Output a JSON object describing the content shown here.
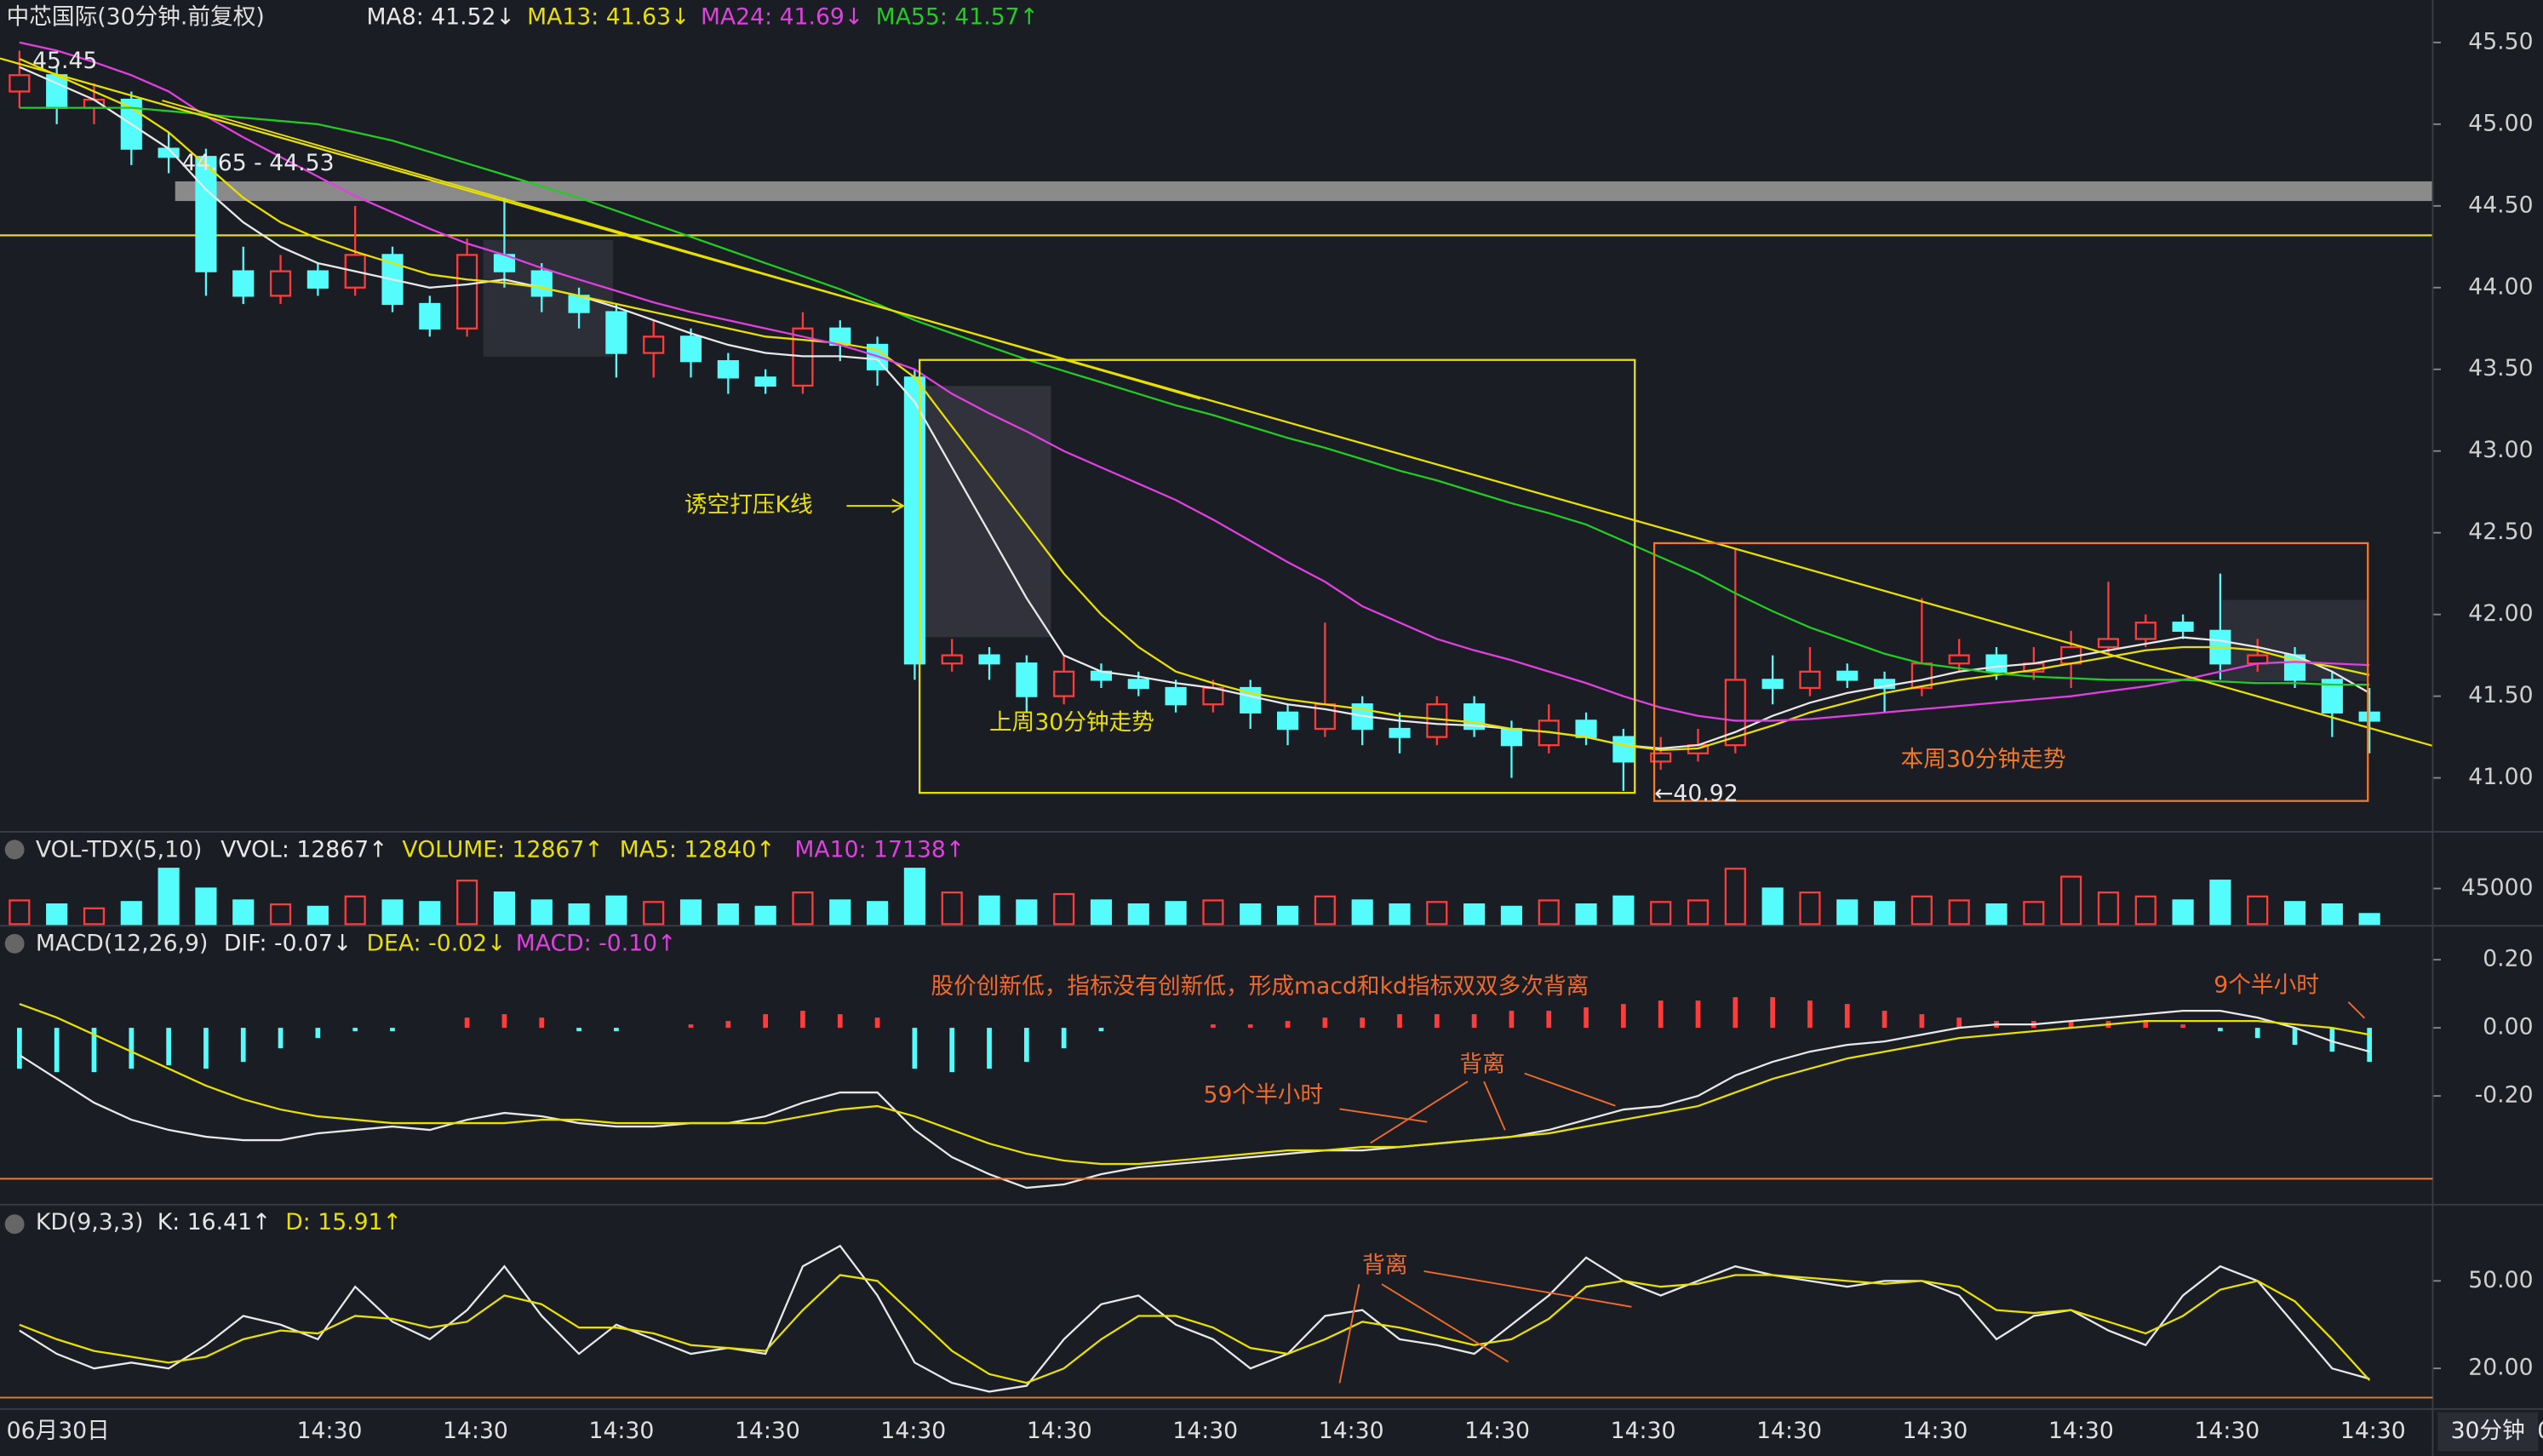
{
  "chart_data": [
    {
      "type": "candlestick",
      "title": "中芯国际(30分钟.前复权)",
      "title_color": "#e0e0e0",
      "open": [
        45.2,
        45.3,
        45.1,
        45.15,
        44.85,
        44.8,
        44.1,
        43.95,
        44.1,
        44.0,
        44.2,
        43.9,
        43.75,
        44.2,
        44.1,
        43.95,
        43.85,
        43.6,
        43.7,
        43.55,
        43.45,
        43.4,
        43.75,
        43.65,
        43.45,
        41.7,
        41.75,
        41.7,
        41.5,
        41.65,
        41.6,
        41.55,
        41.45,
        41.55,
        41.4,
        41.3,
        41.45,
        41.3,
        41.25,
        41.45,
        41.3,
        41.2,
        41.35,
        41.25,
        41.1,
        41.15,
        41.2,
        41.6,
        41.55,
        41.65,
        41.6,
        41.55,
        41.7,
        41.75,
        41.65,
        41.7,
        41.8,
        41.85,
        41.95,
        41.9,
        41.7,
        41.75,
        41.6,
        41.4
      ],
      "high": [
        45.45,
        45.35,
        45.25,
        45.2,
        44.95,
        44.85,
        44.25,
        44.2,
        44.15,
        44.5,
        44.25,
        43.95,
        44.3,
        44.55,
        44.15,
        44.0,
        43.9,
        43.8,
        43.75,
        43.6,
        43.5,
        43.85,
        43.8,
        43.7,
        43.5,
        41.85,
        41.8,
        41.75,
        41.75,
        41.7,
        41.65,
        41.6,
        41.6,
        41.6,
        41.45,
        41.95,
        41.5,
        41.4,
        41.5,
        41.5,
        41.35,
        41.45,
        41.4,
        41.3,
        41.25,
        41.3,
        42.4,
        41.75,
        41.8,
        41.7,
        41.65,
        42.1,
        41.85,
        41.8,
        41.8,
        41.9,
        42.2,
        42.0,
        42.0,
        42.25,
        41.85,
        41.8,
        41.65,
        41.55
      ],
      "low": [
        45.1,
        45.0,
        45.0,
        44.75,
        44.7,
        43.95,
        43.9,
        43.9,
        43.95,
        43.95,
        43.85,
        43.7,
        43.7,
        44.0,
        43.85,
        43.75,
        43.45,
        43.45,
        43.45,
        43.35,
        43.35,
        43.35,
        43.55,
        43.4,
        41.6,
        41.65,
        41.6,
        41.4,
        41.45,
        41.55,
        41.5,
        41.4,
        41.4,
        41.3,
        41.2,
        41.25,
        41.2,
        41.15,
        41.2,
        41.25,
        41.0,
        41.15,
        41.2,
        40.92,
        41.05,
        41.1,
        41.15,
        41.45,
        41.5,
        41.55,
        41.4,
        41.5,
        41.65,
        41.6,
        41.6,
        41.55,
        41.75,
        41.8,
        41.85,
        41.6,
        41.65,
        41.55,
        41.25,
        41.15
      ],
      "close": [
        45.3,
        45.1,
        45.15,
        44.85,
        44.8,
        44.1,
        43.95,
        44.1,
        44.0,
        44.2,
        43.9,
        43.75,
        44.2,
        44.1,
        43.95,
        43.85,
        43.6,
        43.7,
        43.55,
        43.45,
        43.4,
        43.75,
        43.65,
        43.5,
        41.7,
        41.75,
        41.7,
        41.5,
        41.65,
        41.6,
        41.55,
        41.45,
        41.55,
        41.4,
        41.3,
        41.45,
        41.3,
        41.25,
        41.45,
        41.3,
        41.2,
        41.35,
        41.25,
        41.1,
        41.15,
        41.2,
        41.6,
        41.55,
        41.65,
        41.6,
        41.55,
        41.7,
        41.75,
        41.65,
        41.7,
        41.8,
        41.85,
        41.95,
        41.9,
        41.7,
        41.75,
        41.6,
        41.4,
        41.35
      ],
      "up_color": "#ff3c3c",
      "down_color": "#54fcfc",
      "series": [
        {
          "name": "MA8",
          "legend_label": "MA8: 41.52↓",
          "color": "#e8e8e8",
          "values": [
            45.35,
            45.25,
            45.15,
            45.0,
            44.85,
            44.6,
            44.4,
            44.25,
            44.15,
            44.1,
            44.05,
            44.0,
            44.02,
            44.05,
            44.0,
            43.95,
            43.88,
            43.8,
            43.72,
            43.65,
            43.6,
            43.58,
            43.58,
            43.56,
            43.3,
            42.9,
            42.5,
            42.1,
            41.75,
            41.65,
            41.62,
            41.58,
            41.55,
            41.5,
            41.45,
            41.42,
            41.38,
            41.35,
            41.33,
            41.32,
            41.3,
            41.28,
            41.25,
            41.2,
            41.18,
            41.2,
            41.28,
            41.38,
            41.46,
            41.52,
            41.56,
            41.6,
            41.65,
            41.68,
            41.7,
            41.74,
            41.78,
            41.82,
            41.86,
            41.84,
            41.8,
            41.75,
            41.65,
            41.52
          ]
        },
        {
          "name": "MA13",
          "legend_label": "MA13: 41.63↓",
          "color": "#e8e000",
          "values": [
            45.4,
            45.3,
            45.2,
            45.1,
            44.95,
            44.75,
            44.55,
            44.4,
            44.3,
            44.22,
            44.15,
            44.08,
            44.05,
            44.03,
            44.0,
            43.95,
            43.9,
            43.85,
            43.8,
            43.75,
            43.7,
            43.68,
            43.66,
            43.62,
            43.45,
            43.15,
            42.85,
            42.55,
            42.25,
            42.0,
            41.8,
            41.65,
            41.58,
            41.52,
            41.48,
            41.45,
            41.42,
            41.38,
            41.36,
            41.34,
            41.3,
            41.28,
            41.25,
            41.2,
            41.17,
            41.18,
            41.25,
            41.32,
            41.4,
            41.46,
            41.52,
            41.56,
            41.6,
            41.63,
            41.66,
            41.7,
            41.74,
            41.78,
            41.8,
            41.8,
            41.78,
            41.72,
            41.68,
            41.63
          ]
        },
        {
          "name": "MA24",
          "legend_label": "MA24: 41.69↓",
          "color": "#e040e0",
          "values": [
            45.5,
            45.45,
            45.38,
            45.3,
            45.2,
            45.05,
            44.92,
            44.8,
            44.68,
            44.56,
            44.46,
            44.36,
            44.27,
            44.2,
            44.12,
            44.05,
            43.98,
            43.91,
            43.85,
            43.8,
            43.75,
            43.7,
            43.65,
            43.58,
            43.5,
            43.35,
            43.23,
            43.12,
            43.0,
            42.9,
            42.8,
            42.7,
            42.58,
            42.45,
            42.32,
            42.2,
            42.05,
            41.95,
            41.85,
            41.78,
            41.72,
            41.65,
            41.58,
            41.5,
            41.43,
            41.38,
            41.35,
            41.35,
            41.36,
            41.38,
            41.4,
            41.42,
            41.44,
            41.46,
            41.48,
            41.5,
            41.53,
            41.56,
            41.6,
            41.65,
            41.7,
            41.71,
            41.7,
            41.69
          ]
        },
        {
          "name": "MA55",
          "legend_label": "MA55: 41.57↑",
          "color": "#22cc22",
          "values": [
            45.1,
            45.1,
            45.1,
            45.1,
            45.08,
            45.06,
            45.04,
            45.02,
            45.0,
            44.95,
            44.9,
            44.83,
            44.76,
            44.69,
            44.62,
            44.55,
            44.47,
            44.39,
            44.31,
            44.23,
            44.15,
            44.07,
            43.99,
            43.9,
            43.8,
            43.72,
            43.64,
            43.56,
            43.49,
            43.42,
            43.35,
            43.28,
            43.22,
            43.15,
            43.08,
            43.02,
            42.95,
            42.88,
            42.82,
            42.75,
            42.68,
            42.62,
            42.55,
            42.45,
            42.35,
            42.25,
            42.13,
            42.02,
            41.92,
            41.84,
            41.76,
            41.7,
            41.67,
            41.64,
            41.62,
            41.61,
            41.6,
            41.6,
            41.6,
            41.59,
            41.58,
            41.58,
            41.57,
            41.57
          ]
        }
      ],
      "band": [
        44.65,
        44.53
      ],
      "band_color": "#8a8a8a",
      "level": 44.32,
      "level_color": "#e8e000",
      "ylim": [
        40.7,
        45.76
      ],
      "yticks": [
        {
          "value": 41,
          "label": "41.00"
        },
        {
          "value": 41.5,
          "label": "41.50"
        },
        {
          "value": 42,
          "label": "42.00"
        },
        {
          "value": 42.5,
          "label": "42.50"
        },
        {
          "value": 43,
          "label": "43.00"
        },
        {
          "value": 43.5,
          "label": "43.50"
        },
        {
          "value": 44,
          "label": "44.00"
        },
        {
          "value": 44.5,
          "label": "44.50"
        },
        {
          "value": 45,
          "label": "45.00"
        },
        {
          "value": 45.5,
          "label": "45.50"
        }
      ],
      "annotations": {
        "max_label": "45.45",
        "band_label": "44.65 - 44.53",
        "min_label": "←40.92",
        "pressure_note": "诱空打压K线",
        "last_week": "上周30分钟走势",
        "this_week": "本周30分钟走势"
      }
    },
    {
      "type": "bar",
      "title": "VOL-TDX(5,10)",
      "title_color": "#e0e0e0",
      "header_labels": [
        {
          "label": "VVOL: 12867↑",
          "color": "#e8e8e8"
        },
        {
          "label": "VOLUME: 12867↑",
          "color": "#e8e000"
        },
        {
          "label": "MA5: 12840↑",
          "color": "#e8e000"
        },
        {
          "label": "MA10: 17138↑",
          "color": "#e040e0"
        }
      ],
      "values": [
        30000,
        25000,
        20000,
        28000,
        70000,
        45000,
        30000,
        25000,
        22000,
        35000,
        30000,
        28000,
        55000,
        40000,
        30000,
        25000,
        35000,
        28000,
        30000,
        25000,
        22000,
        40000,
        30000,
        28000,
        70000,
        40000,
        35000,
        30000,
        38000,
        30000,
        25000,
        28000,
        30000,
        25000,
        22000,
        35000,
        30000,
        25000,
        28000,
        25000,
        22000,
        30000,
        25000,
        35000,
        28000,
        30000,
        70000,
        45000,
        40000,
        30000,
        28000,
        35000,
        30000,
        25000,
        28000,
        60000,
        40000,
        35000,
        30000,
        55000,
        35000,
        28000,
        25000,
        12867
      ],
      "ylim": [
        0,
        112500
      ],
      "yticks": [
        45000
      ]
    },
    {
      "type": "macd",
      "title": "MACD(12,26,9)",
      "title_color": "#e0e0e0",
      "histogram": [
        -0.12,
        -0.13,
        -0.13,
        -0.12,
        -0.11,
        -0.12,
        -0.1,
        -0.06,
        -0.03,
        -0.01,
        -0.01,
        0.0,
        0.03,
        0.04,
        0.03,
        -0.01,
        -0.01,
        0.0,
        0.01,
        0.02,
        0.04,
        0.05,
        0.04,
        0.03,
        -0.12,
        -0.13,
        -0.12,
        -0.1,
        -0.06,
        -0.01,
        0.0,
        0.0,
        0.01,
        0.01,
        0.02,
        0.03,
        0.03,
        0.04,
        0.04,
        0.04,
        0.05,
        0.05,
        0.06,
        0.07,
        0.08,
        0.08,
        0.09,
        0.09,
        0.08,
        0.07,
        0.05,
        0.04,
        0.03,
        0.02,
        0.02,
        0.02,
        0.02,
        0.02,
        0.01,
        -0.01,
        -0.03,
        -0.05,
        -0.07,
        -0.1
      ],
      "series": [
        {
          "name": "DIF",
          "legend_label": "DIF: -0.07↓",
          "color": "#e8e8e8",
          "values": [
            -0.08,
            -0.15,
            -0.22,
            -0.27,
            -0.3,
            -0.32,
            -0.33,
            -0.33,
            -0.31,
            -0.3,
            -0.29,
            -0.3,
            -0.27,
            -0.25,
            -0.26,
            -0.28,
            -0.29,
            -0.29,
            -0.28,
            -0.28,
            -0.26,
            -0.22,
            -0.19,
            -0.19,
            -0.3,
            -0.38,
            -0.43,
            -0.47,
            -0.46,
            -0.43,
            -0.41,
            -0.4,
            -0.39,
            -0.38,
            -0.37,
            -0.36,
            -0.36,
            -0.35,
            -0.34,
            -0.33,
            -0.32,
            -0.3,
            -0.27,
            -0.24,
            -0.23,
            -0.2,
            -0.14,
            -0.1,
            -0.07,
            -0.05,
            -0.04,
            -0.02,
            0.0,
            0.01,
            0.01,
            0.02,
            0.03,
            0.04,
            0.05,
            0.05,
            0.03,
            0.0,
            -0.04,
            -0.07
          ]
        },
        {
          "name": "DEA",
          "legend_label": "DEA: -0.02↓",
          "color": "#e8e000",
          "values": [
            0.07,
            0.03,
            -0.02,
            -0.07,
            -0.12,
            -0.17,
            -0.21,
            -0.24,
            -0.26,
            -0.27,
            -0.28,
            -0.28,
            -0.28,
            -0.28,
            -0.27,
            -0.27,
            -0.28,
            -0.28,
            -0.28,
            -0.28,
            -0.28,
            -0.26,
            -0.24,
            -0.23,
            -0.26,
            -0.3,
            -0.34,
            -0.37,
            -0.39,
            -0.4,
            -0.4,
            -0.39,
            -0.38,
            -0.37,
            -0.36,
            -0.36,
            -0.35,
            -0.35,
            -0.34,
            -0.33,
            -0.32,
            -0.31,
            -0.29,
            -0.27,
            -0.25,
            -0.23,
            -0.19,
            -0.15,
            -0.12,
            -0.09,
            -0.07,
            -0.05,
            -0.03,
            -0.02,
            -0.01,
            0.0,
            0.01,
            0.02,
            0.02,
            0.02,
            0.02,
            0.01,
            0.0,
            -0.02
          ]
        }
      ],
      "histogram_label": "MACD: -0.10↑",
      "histogram_label_color": "#e040e0",
      "ylim": [
        -0.505,
        0.29
      ],
      "yticks": [
        {
          "value": -0.2,
          "label": "-0.20"
        },
        {
          "value": 0,
          "label": "0.00"
        },
        {
          "value": 0.2,
          "label": "0.20"
        }
      ],
      "annotations": {
        "divergence_note": "股价创新低，指标没有创新低，形成macd和kd指标双双多次背离",
        "recent_hours": "9个半小时",
        "long_hours": "59个半小时",
        "divergence": "背离"
      }
    },
    {
      "type": "line",
      "title": "KD(9,3,3)",
      "title_color": "#e0e0e0",
      "series": [
        {
          "name": "K",
          "legend_label": "K: 16.41↑",
          "color": "#e8e8e8",
          "values": [
            33,
            25,
            20,
            22,
            20,
            28,
            38,
            35,
            30,
            48,
            36,
            30,
            40,
            55,
            38,
            25,
            35,
            30,
            25,
            27,
            25,
            55,
            62,
            45,
            22,
            15,
            12,
            14,
            30,
            42,
            45,
            35,
            30,
            20,
            25,
            38,
            40,
            30,
            28,
            25,
            35,
            45,
            58,
            50,
            45,
            50,
            55,
            52,
            50,
            48,
            50,
            50,
            45,
            30,
            38,
            40,
            33,
            28,
            45,
            55,
            50,
            35,
            20,
            16.41
          ]
        },
        {
          "name": "D",
          "legend_label": "D: 15.91↑",
          "color": "#e8e000",
          "values": [
            35,
            30,
            26,
            24,
            22,
            24,
            30,
            33,
            32,
            38,
            37,
            34,
            36,
            45,
            42,
            34,
            34,
            32,
            28,
            27,
            26,
            40,
            52,
            50,
            38,
            26,
            18,
            15,
            20,
            30,
            38,
            38,
            34,
            27,
            25,
            30,
            36,
            34,
            31,
            28,
            30,
            37,
            48,
            50,
            48,
            49,
            52,
            52,
            51,
            50,
            49,
            50,
            48,
            40,
            39,
            40,
            36,
            32,
            38,
            47,
            50,
            43,
            30,
            15.91
          ]
        }
      ],
      "ylim": [
        8.3,
        75
      ],
      "yticks": [
        {
          "value": 20,
          "label": "20.00"
        },
        {
          "value": 50,
          "label": "50.00"
        }
      ],
      "annotations": {
        "divergence": "背离"
      }
    }
  ],
  "time_axis": {
    "labels": [
      "06月30日",
      "14:30",
      "14:30",
      "14:30",
      "14:30",
      "14:30",
      "14:30",
      "14:30",
      "14:30",
      "14:30",
      "14:30",
      "14:30",
      "14:30",
      "14:30",
      "14:30",
      "14:30",
      "14:30"
    ],
    "period": "30分钟"
  }
}
